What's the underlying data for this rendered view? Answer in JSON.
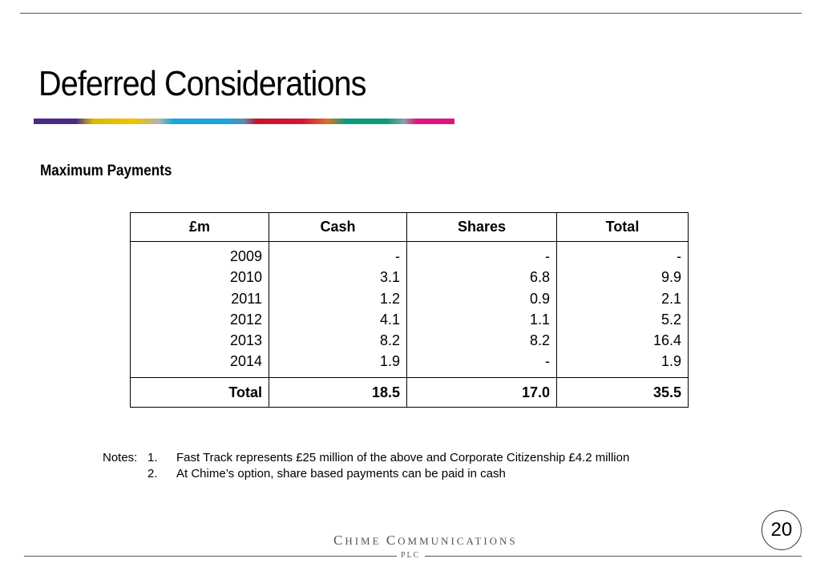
{
  "slide": {
    "title": "Deferred Considerations",
    "subtitle": "Maximum Payments",
    "page_number": "20"
  },
  "colors": {
    "brand_bar": [
      "#4b2a86",
      "#f2c200",
      "#1aa6dd",
      "#d01836",
      "#0f9a7a",
      "#e0157c"
    ]
  },
  "table": {
    "headers": [
      "£m",
      "Cash",
      "Shares",
      "Total"
    ],
    "rows": [
      {
        "year": "2009",
        "cash": "-",
        "shares": "-",
        "total": "-"
      },
      {
        "year": "2010",
        "cash": "3.1",
        "shares": "6.8",
        "total": "9.9"
      },
      {
        "year": "2011",
        "cash": "1.2",
        "shares": "0.9",
        "total": "2.1"
      },
      {
        "year": "2012",
        "cash": "4.1",
        "shares": "1.1",
        "total": "5.2"
      },
      {
        "year": "2013",
        "cash": "8.2",
        "shares": "8.2",
        "total": "16.4"
      },
      {
        "year": "2014",
        "cash": "1.9",
        "shares": "-",
        "total": "1.9"
      }
    ],
    "totals": {
      "label": "Total",
      "cash": "18.5",
      "shares": "17.0",
      "total": "35.5"
    }
  },
  "notes": {
    "label": "Notes:",
    "items": [
      {
        "num": "1.",
        "text": "Fast Track represents £25 million of the above and Corporate Citizenship £4.2 million"
      },
      {
        "num": "2.",
        "text": "At Chime’s option, share based payments can be paid in cash"
      }
    ]
  },
  "footer": {
    "company_name": "Chime Communications",
    "company_suffix": "PLC"
  }
}
